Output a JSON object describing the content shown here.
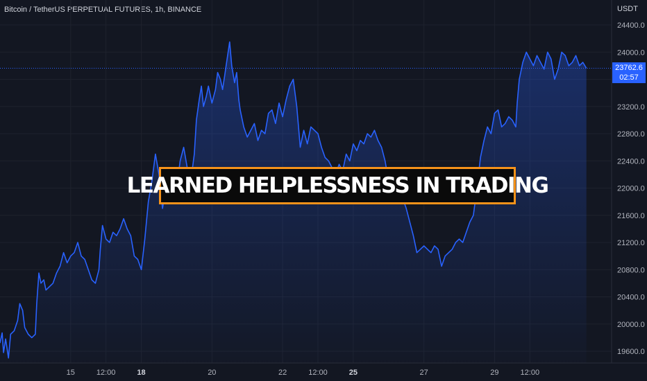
{
  "header": {
    "symbol": "Bitcoin / TetherUS PERPETUAL FUTURES, 1h, BINANCE",
    "currency": "USDT"
  },
  "last_price": {
    "value": "23762.6",
    "countdown": "02:57"
  },
  "banner": {
    "text": "LEARNED HELPLESSNESS IN TRADING",
    "border_color": "#f7931a"
  },
  "colors": {
    "background": "#131722",
    "line": "#2962ff",
    "accent": "#f7931a"
  },
  "chart_data": {
    "type": "area",
    "title": "",
    "xlabel": "",
    "ylabel": "",
    "ylim": [
      19450,
      24600
    ],
    "y_ticks": [
      "19600.0",
      "20000.0",
      "20400.0",
      "20800.0",
      "21200.0",
      "21600.0",
      "22000.0",
      "22400.0",
      "22800.0",
      "23200.0",
      "23600.0",
      "24000.0",
      "24400.0"
    ],
    "x_ticks": [
      {
        "label": "15",
        "bold": false,
        "t": 15
      },
      {
        "label": "12:00",
        "bold": false,
        "t": 15.5
      },
      {
        "label": "18",
        "bold": true,
        "t": 16
      },
      {
        "label": "20",
        "bold": false,
        "t": 17
      },
      {
        "label": "22",
        "bold": false,
        "t": 18
      },
      {
        "label": "12:00",
        "bold": false,
        "t": 18.5
      },
      {
        "label": "25",
        "bold": true,
        "t": 19
      },
      {
        "label": "27",
        "bold": false,
        "t": 20
      },
      {
        "label": "29",
        "bold": false,
        "t": 21
      },
      {
        "label": "12:00",
        "bold": false,
        "t": 21.5
      }
    ],
    "series": [
      {
        "values": [
          [
            14.0,
            19720
          ],
          [
            14.03,
            19870
          ],
          [
            14.05,
            19580
          ],
          [
            14.08,
            19780
          ],
          [
            14.12,
            19500
          ],
          [
            14.15,
            19850
          ],
          [
            14.2,
            19900
          ],
          [
            14.25,
            20050
          ],
          [
            14.28,
            20300
          ],
          [
            14.32,
            20200
          ],
          [
            14.35,
            19950
          ],
          [
            14.4,
            19850
          ],
          [
            14.45,
            19800
          ],
          [
            14.5,
            19850
          ],
          [
            14.52,
            20300
          ],
          [
            14.55,
            20750
          ],
          [
            14.58,
            20600
          ],
          [
            14.62,
            20650
          ],
          [
            14.65,
            20500
          ],
          [
            14.7,
            20550
          ],
          [
            14.75,
            20600
          ],
          [
            14.8,
            20750
          ],
          [
            14.85,
            20850
          ],
          [
            14.9,
            21050
          ],
          [
            14.95,
            20900
          ],
          [
            15.0,
            21000
          ],
          [
            15.05,
            21050
          ],
          [
            15.1,
            21200
          ],
          [
            15.15,
            21000
          ],
          [
            15.2,
            20950
          ],
          [
            15.25,
            20800
          ],
          [
            15.3,
            20650
          ],
          [
            15.35,
            20600
          ],
          [
            15.4,
            20800
          ],
          [
            15.42,
            21100
          ],
          [
            15.45,
            21450
          ],
          [
            15.5,
            21250
          ],
          [
            15.55,
            21200
          ],
          [
            15.6,
            21350
          ],
          [
            15.65,
            21300
          ],
          [
            15.7,
            21400
          ],
          [
            15.75,
            21550
          ],
          [
            15.8,
            21400
          ],
          [
            15.85,
            21300
          ],
          [
            15.9,
            21000
          ],
          [
            15.95,
            20950
          ],
          [
            16.0,
            20800
          ],
          [
            16.05,
            21250
          ],
          [
            16.1,
            21800
          ],
          [
            16.15,
            22100
          ],
          [
            16.2,
            22500
          ],
          [
            16.25,
            22200
          ],
          [
            16.3,
            21700
          ],
          [
            16.35,
            22000
          ],
          [
            16.4,
            22300
          ],
          [
            16.45,
            22200
          ],
          [
            16.5,
            22000
          ],
          [
            16.55,
            22400
          ],
          [
            16.6,
            22600
          ],
          [
            16.65,
            22300
          ],
          [
            16.7,
            22100
          ],
          [
            16.75,
            22500
          ],
          [
            16.78,
            23000
          ],
          [
            16.82,
            23300
          ],
          [
            16.85,
            23500
          ],
          [
            16.88,
            23200
          ],
          [
            16.92,
            23350
          ],
          [
            16.95,
            23500
          ],
          [
            17.0,
            23250
          ],
          [
            17.05,
            23450
          ],
          [
            17.08,
            23700
          ],
          [
            17.12,
            23600
          ],
          [
            17.15,
            23450
          ],
          [
            17.18,
            23650
          ],
          [
            17.2,
            23800
          ],
          [
            17.25,
            24150
          ],
          [
            17.28,
            23800
          ],
          [
            17.32,
            23550
          ],
          [
            17.35,
            23700
          ],
          [
            17.38,
            23300
          ],
          [
            17.4,
            23150
          ],
          [
            17.45,
            22900
          ],
          [
            17.5,
            22750
          ],
          [
            17.55,
            22850
          ],
          [
            17.6,
            22950
          ],
          [
            17.65,
            22700
          ],
          [
            17.7,
            22850
          ],
          [
            17.75,
            22800
          ],
          [
            17.8,
            23100
          ],
          [
            17.85,
            23150
          ],
          [
            17.9,
            22950
          ],
          [
            17.95,
            23250
          ],
          [
            18.0,
            23050
          ],
          [
            18.05,
            23300
          ],
          [
            18.1,
            23500
          ],
          [
            18.15,
            23600
          ],
          [
            18.2,
            23200
          ],
          [
            18.25,
            22600
          ],
          [
            18.3,
            22850
          ],
          [
            18.35,
            22650
          ],
          [
            18.4,
            22900
          ],
          [
            18.45,
            22850
          ],
          [
            18.5,
            22800
          ],
          [
            18.55,
            22600
          ],
          [
            18.6,
            22450
          ],
          [
            18.65,
            22400
          ],
          [
            18.7,
            22300
          ],
          [
            18.75,
            22200
          ],
          [
            18.8,
            22350
          ],
          [
            18.85,
            22250
          ],
          [
            18.9,
            22500
          ],
          [
            18.95,
            22400
          ],
          [
            19.0,
            22650
          ],
          [
            19.05,
            22550
          ],
          [
            19.1,
            22700
          ],
          [
            19.15,
            22650
          ],
          [
            19.2,
            22800
          ],
          [
            19.25,
            22750
          ],
          [
            19.3,
            22850
          ],
          [
            19.35,
            22700
          ],
          [
            19.4,
            22600
          ],
          [
            19.45,
            22400
          ],
          [
            19.5,
            22100
          ],
          [
            19.55,
            21950
          ],
          [
            19.6,
            21800
          ],
          [
            19.65,
            21900
          ],
          [
            19.7,
            21850
          ],
          [
            19.75,
            21700
          ],
          [
            19.8,
            21500
          ],
          [
            19.85,
            21300
          ],
          [
            19.9,
            21050
          ],
          [
            19.95,
            21100
          ],
          [
            20.0,
            21150
          ],
          [
            20.05,
            21100
          ],
          [
            20.1,
            21050
          ],
          [
            20.15,
            21150
          ],
          [
            20.2,
            21100
          ],
          [
            20.25,
            20850
          ],
          [
            20.3,
            21000
          ],
          [
            20.35,
            21050
          ],
          [
            20.4,
            21100
          ],
          [
            20.45,
            21200
          ],
          [
            20.5,
            21250
          ],
          [
            20.55,
            21200
          ],
          [
            20.6,
            21350
          ],
          [
            20.65,
            21500
          ],
          [
            20.7,
            21600
          ],
          [
            20.75,
            22000
          ],
          [
            20.8,
            22450
          ],
          [
            20.85,
            22700
          ],
          [
            20.9,
            22900
          ],
          [
            20.95,
            22800
          ],
          [
            21.0,
            23100
          ],
          [
            21.05,
            23150
          ],
          [
            21.1,
            22900
          ],
          [
            21.15,
            22950
          ],
          [
            21.2,
            23050
          ],
          [
            21.25,
            23000
          ],
          [
            21.3,
            22900
          ],
          [
            21.32,
            23250
          ],
          [
            21.35,
            23600
          ],
          [
            21.4,
            23850
          ],
          [
            21.45,
            24000
          ],
          [
            21.5,
            23900
          ],
          [
            21.55,
            23800
          ],
          [
            21.6,
            23950
          ],
          [
            21.65,
            23850
          ],
          [
            21.7,
            23750
          ],
          [
            21.75,
            24000
          ],
          [
            21.8,
            23900
          ],
          [
            21.85,
            23600
          ],
          [
            21.9,
            23750
          ],
          [
            21.95,
            24000
          ],
          [
            22.0,
            23950
          ],
          [
            22.05,
            23800
          ],
          [
            22.1,
            23850
          ],
          [
            22.15,
            23950
          ],
          [
            22.2,
            23800
          ],
          [
            22.25,
            23850
          ],
          [
            22.3,
            23762.6
          ]
        ]
      }
    ]
  }
}
